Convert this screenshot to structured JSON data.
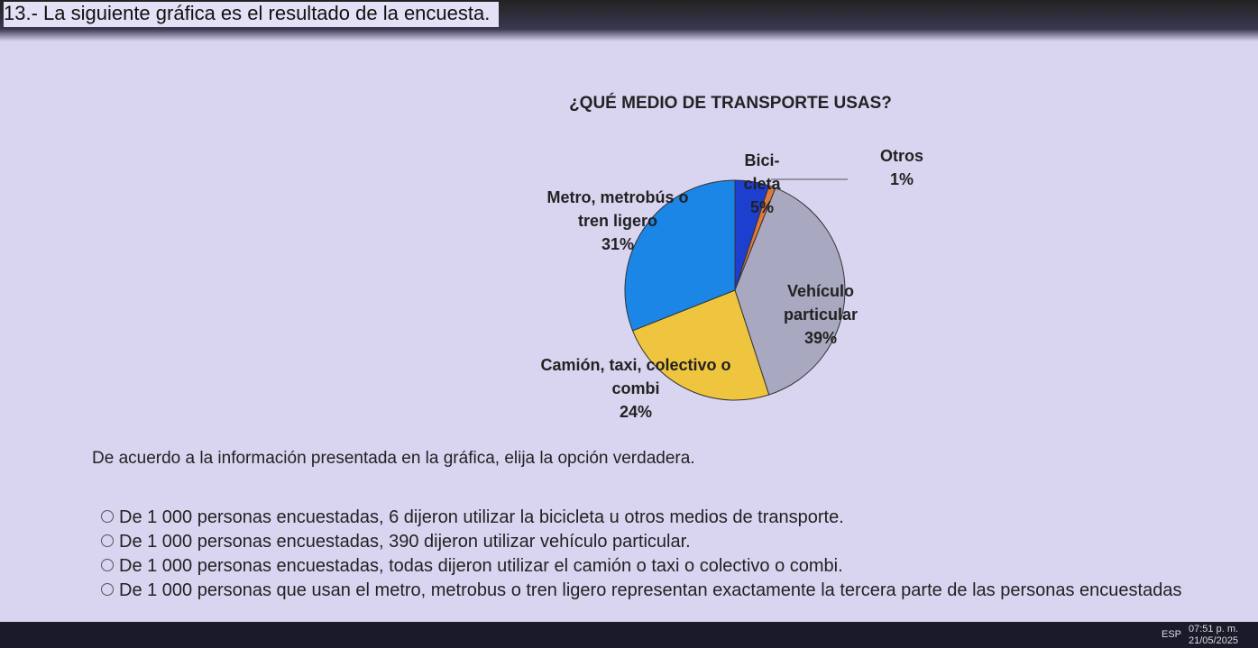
{
  "question": "13.- La siguiente gráfica es el resultado de la encuesta.",
  "chart_data": {
    "type": "pie",
    "title": "¿QUÉ MEDIO DE TRANSPORTE USAS?",
    "categories": [
      "Bici- cleta",
      "Otros",
      "Vehículo particular",
      "Camión, taxi, colectivo o combi",
      "Metro, metrobús o tren ligero"
    ],
    "values": [
      5,
      1,
      39,
      24,
      31
    ],
    "value_labels": [
      "5%",
      "1%",
      "39%",
      "24%",
      "31%"
    ],
    "colors": [
      "#1c3fd0",
      "#e0783a",
      "#a8a8c0",
      "#efc53f",
      "#1b86e6"
    ]
  },
  "prompt": "De acuerdo a la información presentada en la gráfica, elija la opción verdadera.",
  "options": [
    "De 1 000 personas encuestadas, 6 dijeron utilizar la bicicleta u otros medios de transporte.",
    "De 1 000 personas encuestadas, 390 dijeron utilizar vehículo particular.",
    "De 1 000 personas encuestadas, todas dijeron utilizar el camión o taxi o colectivo o combi.",
    "De 1 000 personas que usan el metro, metrobus o tren ligero representan exactamente la tercera parte de las personas encuestadas"
  ],
  "taskbar": {
    "language": "ESP",
    "time": "07:51 p. m.",
    "date": "21/05/2025"
  }
}
